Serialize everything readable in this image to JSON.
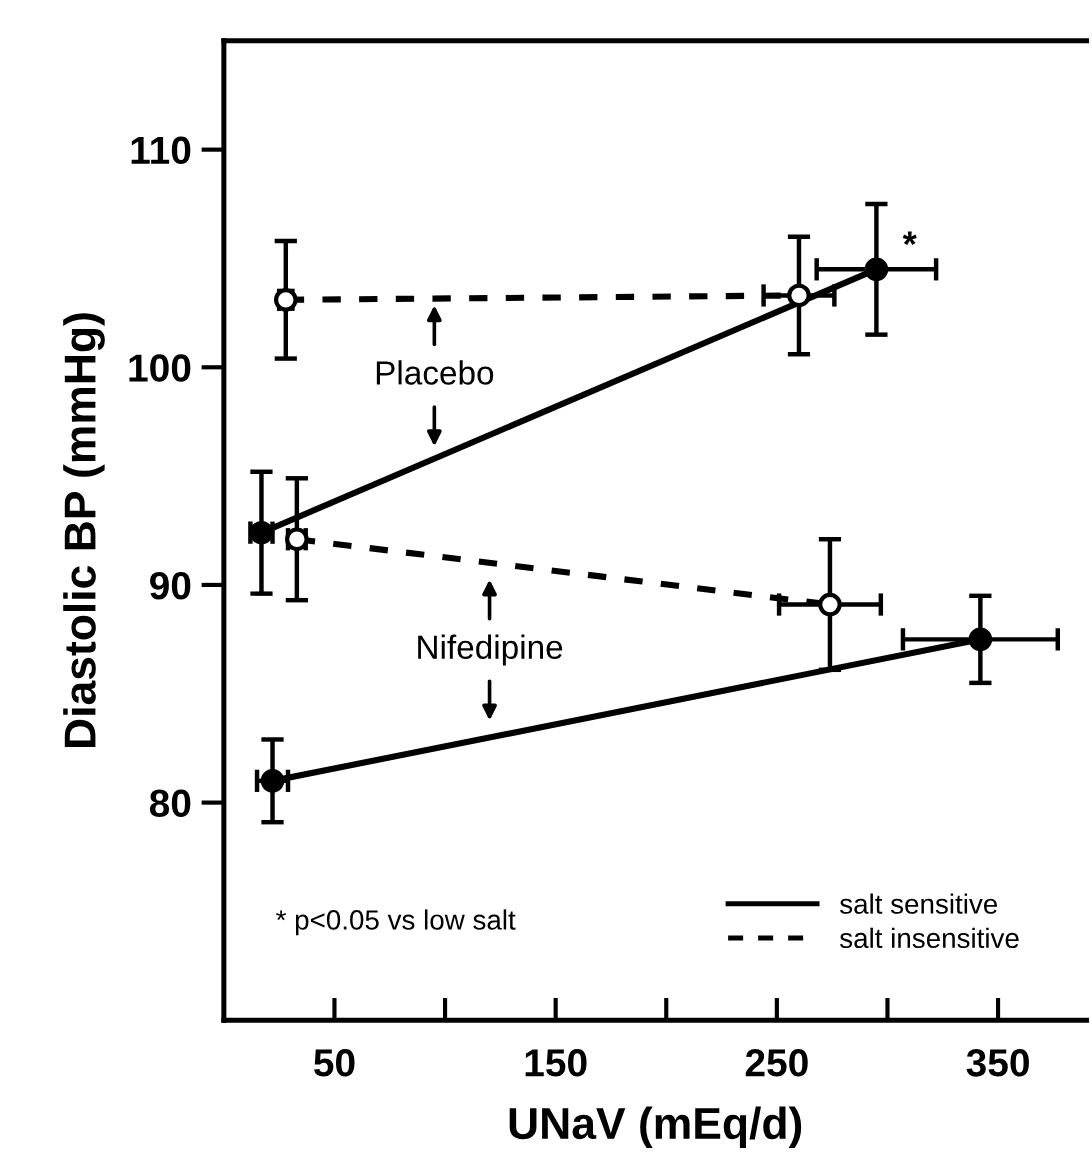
{
  "chart_data": {
    "type": "line",
    "xlabel": "UNaV (mEq/d)",
    "ylabel": "Diastolic BP (mmHg)",
    "xlim": [
      0,
      390
    ],
    "ylim": [
      70,
      115
    ],
    "xticks": [
      50,
      {
        "value": 100,
        "label": null
      },
      150,
      {
        "value": 200,
        "label": null
      },
      250,
      {
        "value": 300,
        "label": null
      },
      350
    ],
    "yticks": [
      80,
      90,
      100,
      110
    ],
    "grid": false,
    "legend": "lower right",
    "marker": "circle",
    "series": [
      {
        "name": "salt sensitive",
        "color": "#000000",
        "line_style": "solid",
        "x": [
          17,
          295
        ],
        "values": [
          92.4,
          104.5
        ],
        "errors": [
          2.8,
          3
        ],
        "xerrors": [
          5,
          27
        ]
      },
      {
        "name": "salt insensitive",
        "color": "#000000",
        "line_style": "dashed",
        "x": [
          28,
          260
        ],
        "values": [
          103.1,
          103.3
        ],
        "errors": [
          2.7,
          2.7
        ],
        "xerrors": [
          3,
          16
        ]
      },
      {
        "color": "#000000",
        "line_style": "dashed",
        "x": [
          33,
          274
        ],
        "values": [
          92.1,
          89.1
        ],
        "errors": [
          2.8,
          3
        ],
        "xerrors": [
          4,
          23
        ]
      },
      {
        "color": "#000000",
        "line_style": "solid",
        "x": [
          22,
          342
        ],
        "values": [
          81,
          87.5
        ],
        "errors": [
          1.9,
          2
        ],
        "xerrors": [
          7,
          35
        ]
      }
    ],
    "annotations": [
      "Placebo",
      "Nifedipine",
      {
        "text": "*",
        "x": 295,
        "y": 104.5
      },
      "* p<0.05 vs low salt"
    ]
  }
}
